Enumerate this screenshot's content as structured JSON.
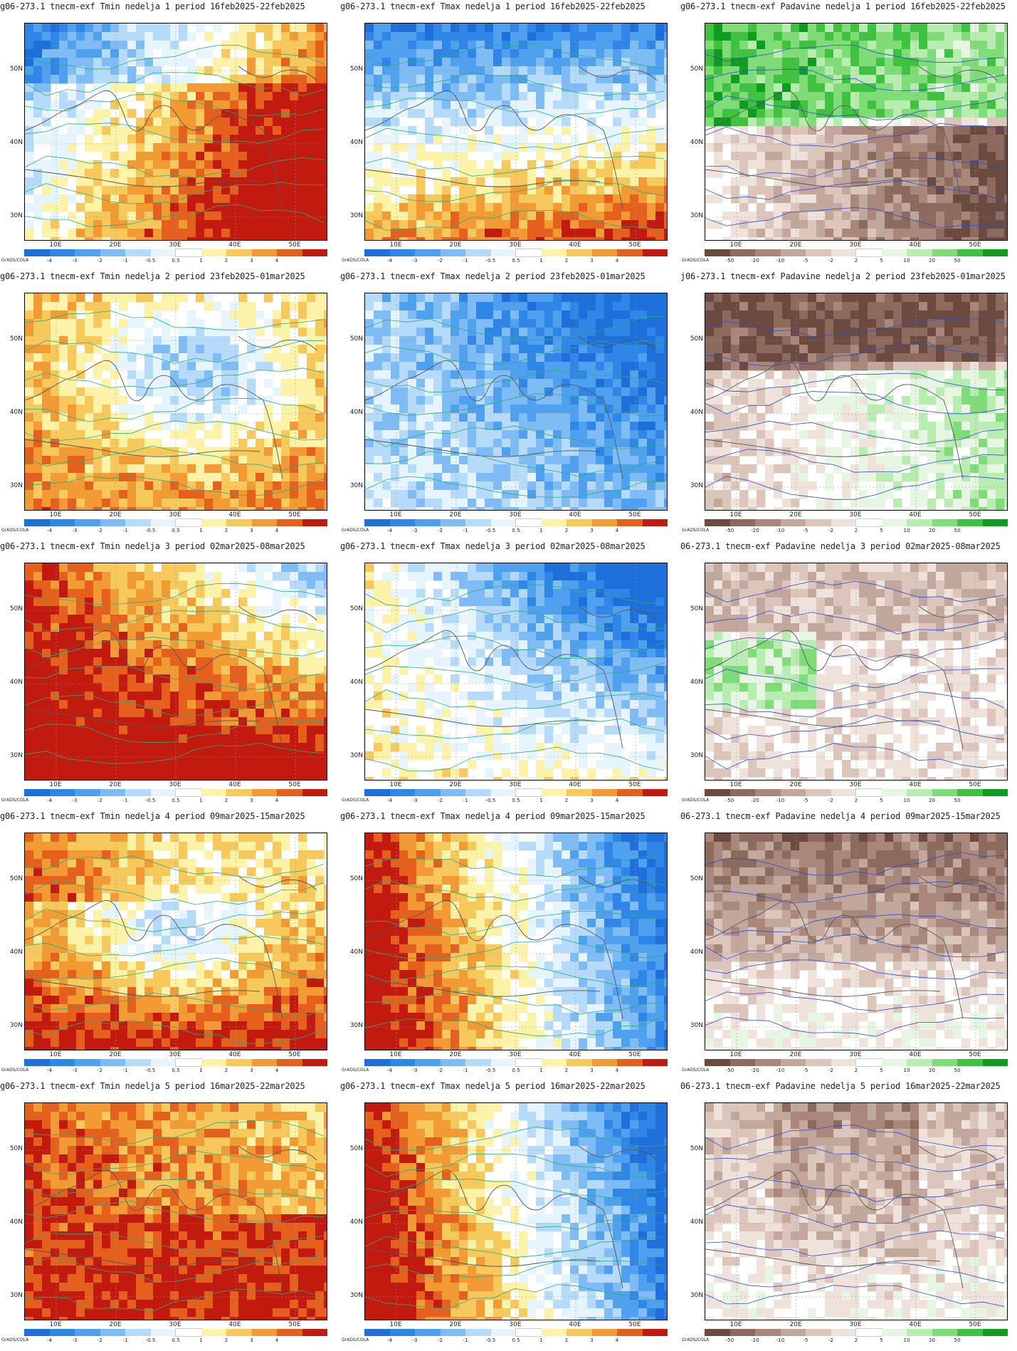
{
  "grads_label": "GrADS/COLA",
  "lat_labels": [
    "50N",
    "40N",
    "30N"
  ],
  "lon_labels": [
    "10E",
    "20E",
    "30E",
    "40E",
    "50E"
  ],
  "scales": {
    "temp": {
      "labels": [
        "-4",
        "-3",
        "-2",
        "-1",
        "-0.5",
        "0.5",
        "1",
        "2",
        "3",
        "4"
      ],
      "colors": [
        "#1e6fd9",
        "#2f86e6",
        "#4fa0ef",
        "#7fbcf5",
        "#b6daf9",
        "#e6f4fd",
        "#ffffff",
        "#fdf3a8",
        "#f7c95c",
        "#f29a33",
        "#e5601c",
        "#c21a0e"
      ]
    },
    "precip": {
      "labels": [
        "-50",
        "-20",
        "-10",
        "-5",
        "-2",
        "2",
        "5",
        "10",
        "20",
        "50"
      ],
      "colors": [
        "#6b4a3f",
        "#8c6a5e",
        "#a9877b",
        "#c2a79c",
        "#dcc6bc",
        "#efe2da",
        "#ffffff",
        "#e6f6e2",
        "#b8ecb0",
        "#7fdc78",
        "#3fc23f",
        "#129c1f"
      ]
    }
  },
  "panels": [
    {
      "title": "g06-273.1 tnecm-exf Tmin nedelja 1 period 16feb2025-22feb2025",
      "scale": "temp",
      "pattern": "warm-east"
    },
    {
      "title": "g06-273.1 tnecm-exf Tmax nedelja 1 period 16feb2025-22feb2025",
      "scale": "temp",
      "pattern": "cold-north-warm-south"
    },
    {
      "title": "g06-273.1 tnecm-exf Padavine nedelja 1 period 16feb2025-22feb2025",
      "scale": "precip",
      "pattern": "wet-north-dry-east"
    },
    {
      "title": "g06-273.1 tnecm-exf Tmin nedelja 2 period 23feb2025-01mar2025",
      "scale": "temp",
      "pattern": "mixed-cool-center"
    },
    {
      "title": "g06-273.1 tnecm-exf Tmax nedelja 2 period 23feb2025-01mar2025",
      "scale": "temp",
      "pattern": "cold"
    },
    {
      "title": "j06-273.1 tnecm-exf Padavine nedelja 2 period 23feb2025-01mar2025",
      "scale": "precip",
      "pattern": "dry-north-wet-east"
    },
    {
      "title": "g06-273.1 tnecm-exf Tmin nedelja 3 period 02mar2025-08mar2025",
      "scale": "temp",
      "pattern": "warm-west"
    },
    {
      "title": "g06-273.1 tnecm-exf Tmax nedelja 3 period 02mar2025-08mar2025",
      "scale": "temp",
      "pattern": "cold-northeast"
    },
    {
      "title": "06-273.1 tnecm-exf Padavine nedelja 3 period 02mar2025-08mar2025",
      "scale": "precip",
      "pattern": "wet-west"
    },
    {
      "title": "g06-273.1 tnecm-exf Tmin nedelja 4 period 09mar2025-15mar2025",
      "scale": "temp",
      "pattern": "warm-south"
    },
    {
      "title": "g06-273.1 tnecm-exf Tmax nedelja 4 period 09mar2025-15mar2025",
      "scale": "temp",
      "pattern": "warm-west-cold-east"
    },
    {
      "title": "06-273.1 tnecm-exf Padavine nedelja 4 period 09mar2025-15mar2025",
      "scale": "precip",
      "pattern": "dry-north"
    },
    {
      "title": "g06-273.1 tnecm-exf Tmin nedelja 5 period 16mar2025-22mar2025",
      "scale": "temp",
      "pattern": "warm"
    },
    {
      "title": "g06-273.1 tnecm-exf Tmax nedelja 5 period 16mar2025-22mar2025",
      "scale": "temp",
      "pattern": "warm-west-cold-east"
    },
    {
      "title": "06-273.1 tnecm-exf Padavine nedelja 5 period 16mar2025-22mar2025",
      "scale": "precip",
      "pattern": "dry-north-light"
    }
  ]
}
